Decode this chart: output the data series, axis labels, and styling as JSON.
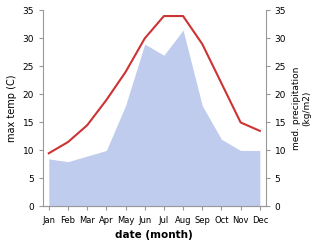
{
  "months": [
    "Jan",
    "Feb",
    "Mar",
    "Apr",
    "May",
    "Jun",
    "Jul",
    "Aug",
    "Sep",
    "Oct",
    "Nov",
    "Dec"
  ],
  "month_x": [
    0,
    1,
    2,
    3,
    4,
    5,
    6,
    7,
    8,
    9,
    10,
    11
  ],
  "temperature": [
    9.5,
    11.5,
    14.5,
    19.0,
    24.0,
    30.0,
    34.0,
    34.0,
    29.0,
    22.0,
    15.0,
    13.5
  ],
  "precipitation": [
    8.5,
    8.0,
    9.0,
    10.0,
    18.0,
    29.0,
    27.0,
    31.5,
    18.0,
    12.0,
    10.0,
    10.0
  ],
  "temp_color": "#cc3333",
  "precip_color": "#c0ccee",
  "ylabel_left": "max temp (C)",
  "ylabel_right": "med. precipitation\n(kg/m2)",
  "xlabel": "date (month)",
  "ylim": [
    0,
    35
  ],
  "yticks": [
    0,
    5,
    10,
    15,
    20,
    25,
    30,
    35
  ],
  "background_color": "#ffffff",
  "fig_width": 3.18,
  "fig_height": 2.47
}
